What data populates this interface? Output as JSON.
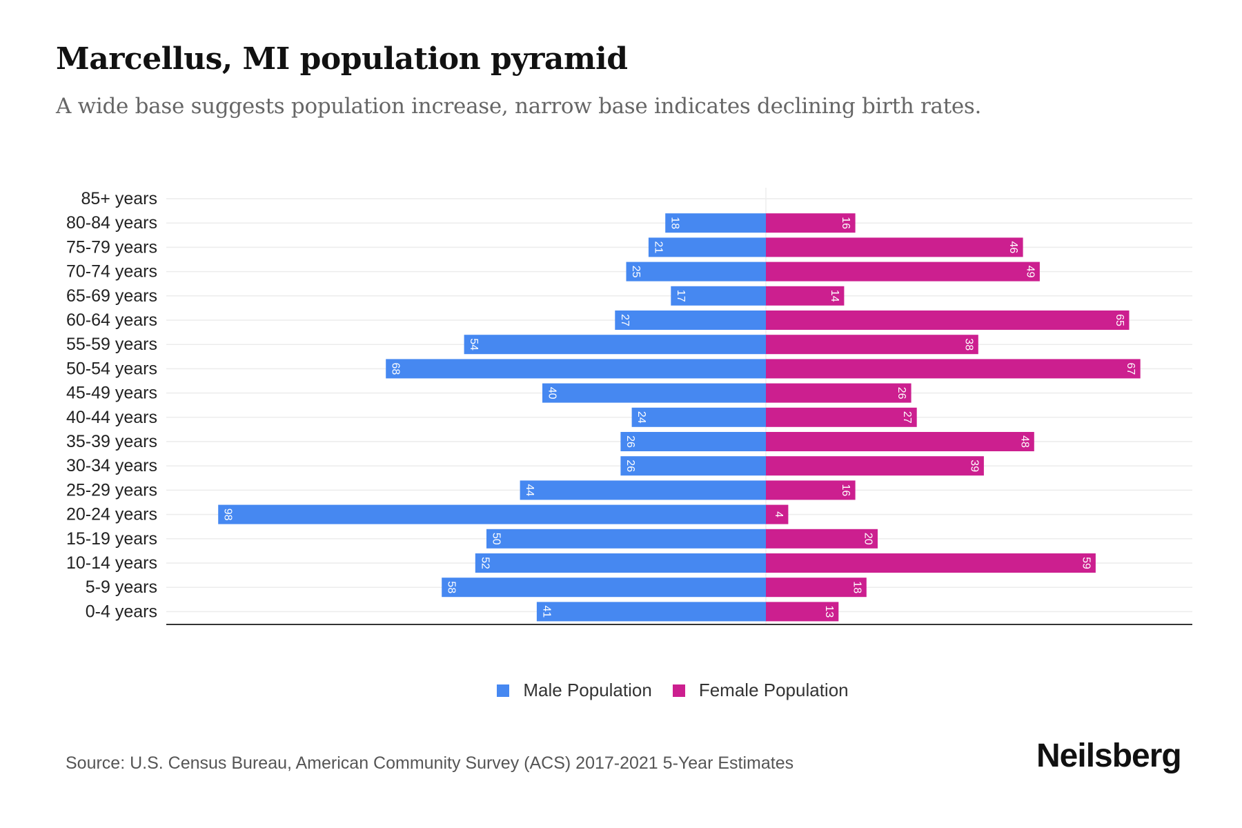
{
  "header": {
    "title": "Marcellus, MI population pyramid",
    "subtitle": "A wide base suggests population increase, narrow base indicates declining birth rates."
  },
  "colors": {
    "male": "#4688f1",
    "female": "#cc1f8f"
  },
  "chart_data": {
    "type": "bar",
    "orientation": "horizontal-diverging",
    "categories": [
      "85+ years",
      "80-84 years",
      "75-79 years",
      "70-74 years",
      "65-69 years",
      "60-64 years",
      "55-59 years",
      "50-54 years",
      "45-49 years",
      "40-44 years",
      "35-39 years",
      "30-34 years",
      "25-29 years",
      "20-24 years",
      "15-19 years",
      "10-14 years",
      "5-9 years",
      "0-4 years"
    ],
    "series": [
      {
        "name": "Male Population",
        "values": [
          0,
          18,
          21,
          25,
          17,
          27,
          54,
          68,
          40,
          24,
          26,
          26,
          44,
          98,
          50,
          52,
          58,
          41
        ]
      },
      {
        "name": "Female Population",
        "values": [
          0,
          16,
          46,
          49,
          14,
          65,
          38,
          67,
          26,
          27,
          48,
          39,
          16,
          4,
          20,
          59,
          18,
          13
        ]
      }
    ],
    "xlim": [
      -107,
      76
    ],
    "legend": "bottom-center",
    "grid": true
  },
  "legend": {
    "male": "Male Population",
    "female": "Female Population"
  },
  "footer": {
    "source": "Source: U.S. Census Bureau, American Community Survey (ACS) 2017-2021 5-Year Estimates",
    "logo": "Neilsberg"
  }
}
